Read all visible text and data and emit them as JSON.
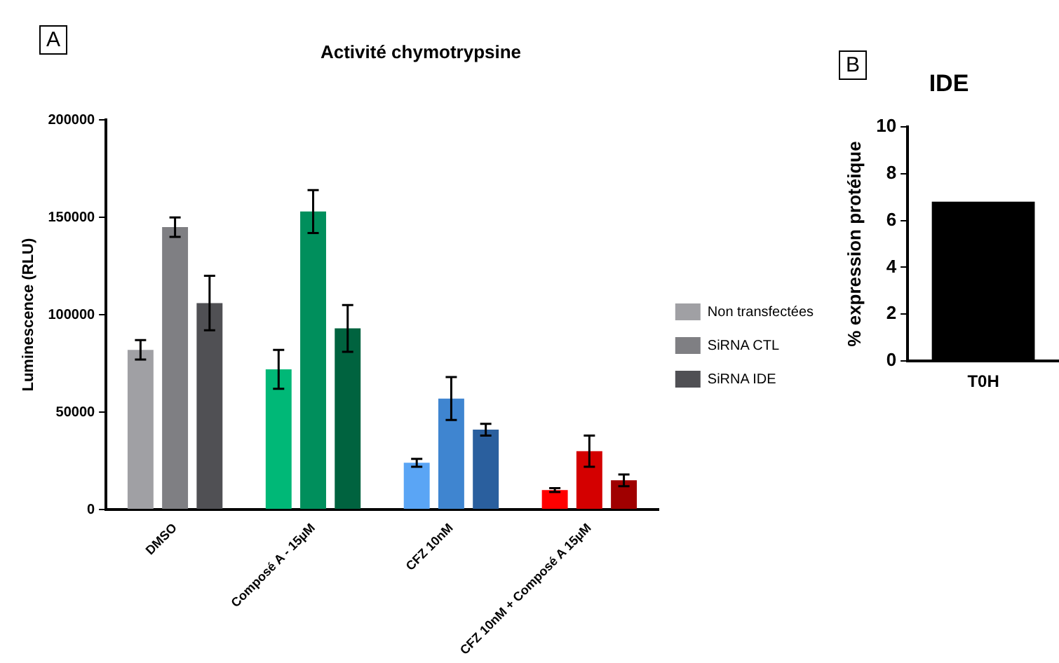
{
  "chart_data": [
    {
      "type": "bar",
      "title": "Activité chymotrypsine",
      "ylabel": "Luminescence (RLU)",
      "annotations": [
        "A"
      ],
      "categories": [
        "DMSO",
        "Composé A - 15µM",
        "CFZ 10nM",
        "CFZ 10nM + Composé A 15µM"
      ],
      "series": [
        {
          "name": "Non transfectées",
          "color": "#a0a0a4",
          "colors": [
            "#a0a0a4",
            "#00b877",
            "#5aa5f5",
            "#ff0000"
          ],
          "values": [
            82000,
            72000,
            24000,
            10000
          ],
          "errors": [
            5000,
            10000,
            2000,
            1000
          ]
        },
        {
          "name": "SiRNA CTL",
          "color": "#7f7f83",
          "colors": [
            "#7f7f83",
            "#008f5c",
            "#3f85d0",
            "#d40000"
          ],
          "values": [
            145000,
            153000,
            57000,
            30000
          ],
          "errors": [
            5000,
            11000,
            11000,
            8000
          ]
        },
        {
          "name": "SiRNA IDE",
          "color": "#505054",
          "colors": [
            "#505054",
            "#00633f",
            "#2a5f9e",
            "#a00000"
          ],
          "values": [
            106000,
            93000,
            41000,
            15000
          ],
          "errors": [
            14000,
            12000,
            3000,
            3000
          ]
        }
      ],
      "ylim": [
        0,
        200000
      ],
      "yticks": [
        0,
        50000,
        100000,
        150000,
        200000
      ],
      "grid": false,
      "legend": "right"
    },
    {
      "type": "bar",
      "title": "IDE",
      "ylabel": "% expression protéique",
      "annotations": [
        "B"
      ],
      "categories": [
        "T0H"
      ],
      "values": [
        6.8
      ],
      "color": "#000000",
      "ylim": [
        0,
        10
      ],
      "yticks": [
        0,
        2,
        4,
        6,
        8,
        10
      ],
      "grid": false
    }
  ]
}
